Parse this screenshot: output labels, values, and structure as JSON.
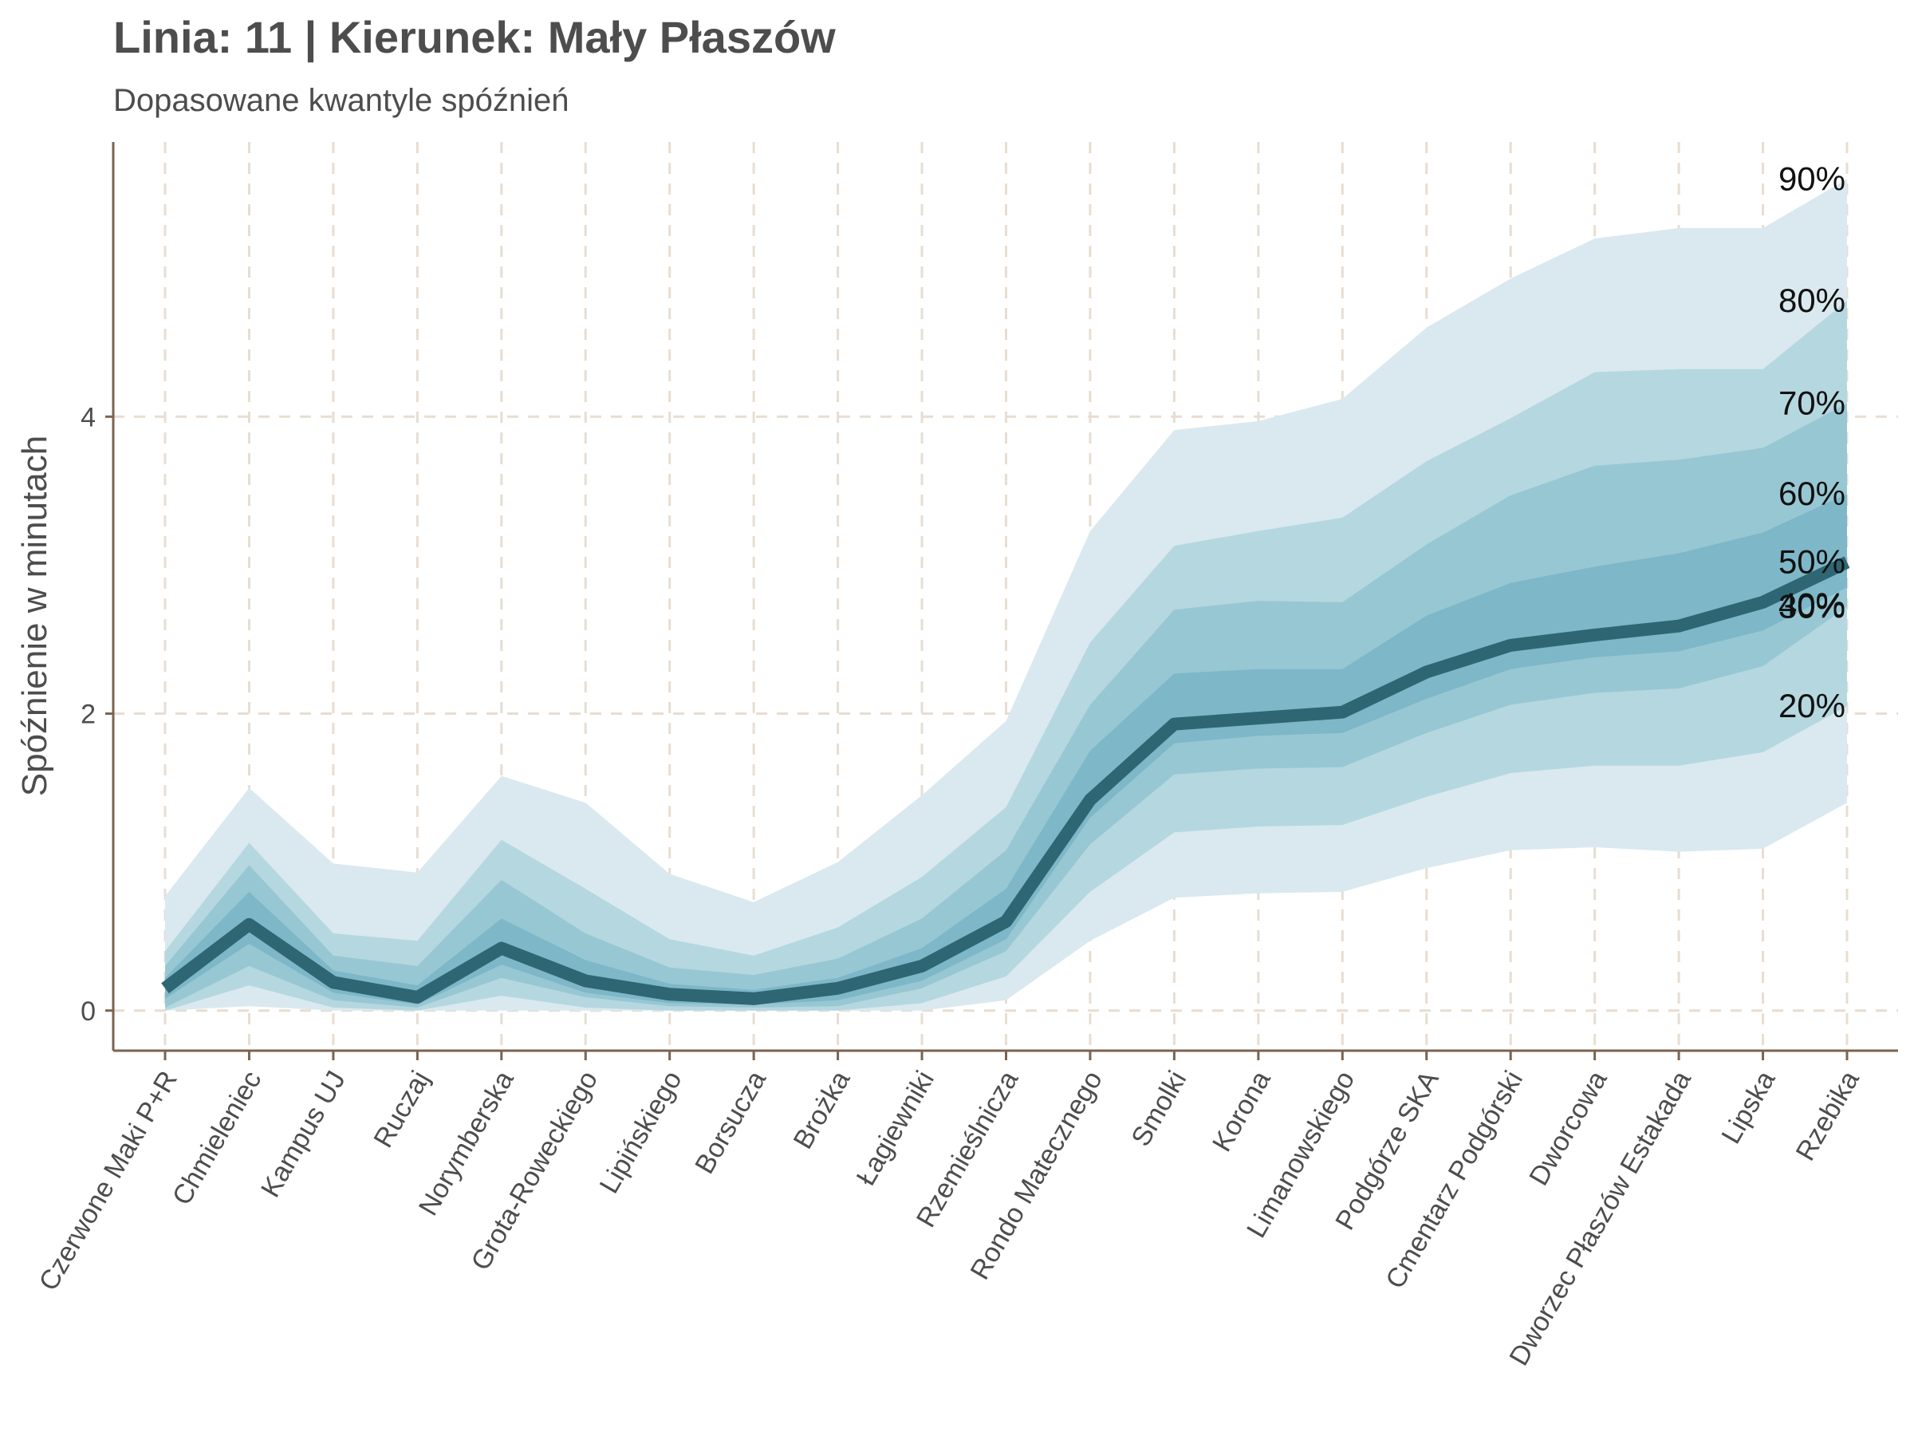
{
  "chart_data": {
    "type": "area",
    "title": "Linia: 11 | Kierunek: Mały Płaszów",
    "subtitle": "Dopasowane kwantyle spóźnień",
    "xlabel": "",
    "ylabel": "Spóźnienie w minutach",
    "ylim": [
      -0.27,
      5.85
    ],
    "yticks": [
      0,
      2,
      4
    ],
    "grid": true,
    "categories": [
      "Czerwone Maki P+R",
      "Chmieleniec",
      "Kampus UJ",
      "Ruczaj",
      "Norymberska",
      "Grota-Roweckiego",
      "Lipińskiego",
      "Borsucza",
      "Brożka",
      "Łagiewniki",
      "Rzemieślnicza",
      "Rondo Matecznego",
      "Smolki",
      "Korona",
      "Limanowskiego",
      "Podgórze SKA",
      "Cmentarz Podgórski",
      "Dworcowa",
      "Dworzec Płaszów Estakada",
      "Lipska",
      "Rzebika"
    ],
    "quantile_labels": [
      "90%",
      "80%",
      "70%",
      "60%",
      "50%",
      "40%",
      "30%",
      "20%"
    ],
    "bands": [
      {
        "lower": [
          0,
          0.03,
          0,
          0,
          0,
          0,
          0,
          0,
          0,
          0,
          0.07,
          0.47,
          0.76,
          0.79,
          0.8,
          0.96,
          1.08,
          1.1,
          1.07,
          1.09,
          1.4
        ],
        "upper": [
          0.77,
          1.5,
          0.99,
          0.93,
          1.58,
          1.4,
          0.92,
          0.73,
          1.0,
          1.45,
          1.95,
          3.23,
          3.91,
          3.97,
          4.12,
          4.6,
          4.93,
          5.2,
          5.27,
          5.27,
          5.6
        ]
      },
      {
        "lower": [
          0,
          0.17,
          0.02,
          0,
          0.1,
          0.02,
          0,
          0,
          0,
          0.05,
          0.23,
          0.8,
          1.2,
          1.24,
          1.25,
          1.44,
          1.6,
          1.65,
          1.65,
          1.74,
          2.05
        ],
        "upper": [
          0.4,
          1.13,
          0.52,
          0.47,
          1.15,
          0.82,
          0.48,
          0.37,
          0.56,
          0.9,
          1.37,
          2.48,
          3.13,
          3.23,
          3.32,
          3.7,
          3.99,
          4.3,
          4.32,
          4.32,
          4.78
        ]
      },
      {
        "lower": [
          0.02,
          0.3,
          0.07,
          0.02,
          0.22,
          0.09,
          0.03,
          0.02,
          0.03,
          0.15,
          0.4,
          1.12,
          1.59,
          1.63,
          1.64,
          1.87,
          2.06,
          2.14,
          2.17,
          2.32,
          2.72
        ],
        "upper": [
          0.3,
          0.98,
          0.37,
          0.3,
          0.88,
          0.52,
          0.29,
          0.24,
          0.35,
          0.62,
          1.08,
          2.06,
          2.7,
          2.76,
          2.75,
          3.14,
          3.47,
          3.67,
          3.71,
          3.79,
          4.09
        ]
      },
      {
        "lower": [
          0.08,
          0.45,
          0.12,
          0.04,
          0.31,
          0.12,
          0.05,
          0.04,
          0.07,
          0.2,
          0.48,
          1.3,
          1.8,
          1.85,
          1.87,
          2.1,
          2.3,
          2.38,
          2.42,
          2.56,
          2.85
        ],
        "upper": [
          0.22,
          0.8,
          0.27,
          0.17,
          0.62,
          0.34,
          0.18,
          0.14,
          0.22,
          0.42,
          0.82,
          1.75,
          2.27,
          2.3,
          2.3,
          2.66,
          2.88,
          2.99,
          3.08,
          3.22,
          3.48
        ]
      }
    ],
    "series": [
      {
        "values": [
          0.15,
          0.58,
          0.19,
          0.09,
          0.42,
          0.2,
          0.11,
          0.08,
          0.15,
          0.3,
          0.6,
          1.42,
          1.93,
          1.97,
          2.01,
          2.28,
          2.46,
          2.53,
          2.59,
          2.75,
          3.02
        ]
      }
    ],
    "colors": {
      "band_fills": [
        "#d9e9ef",
        "#b5d7e0",
        "#97c7d3",
        "#7db7c8"
      ],
      "median_line": "#2f6673",
      "axis": "#7a6350",
      "grid": "#e8ddd2"
    }
  }
}
